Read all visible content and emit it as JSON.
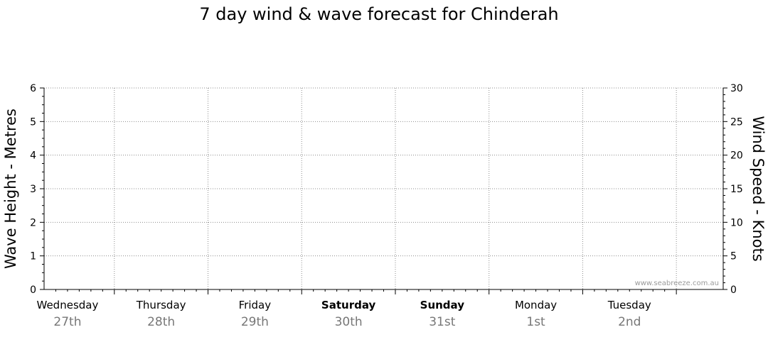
{
  "chart_data": {
    "type": "line",
    "title": "7 day wind & wave forecast for Chinderah",
    "ylabel_left": "Wave Height - Metres",
    "ylabel_right": "Wind Speed - Knots",
    "ylim_left": [
      0,
      6
    ],
    "ylim_right": [
      0,
      30
    ],
    "yticks_left": [
      "0",
      "1",
      "2",
      "3",
      "4",
      "5",
      "6"
    ],
    "yticks_right": [
      "0",
      "5",
      "10",
      "15",
      "20",
      "25",
      "30"
    ],
    "days": [
      {
        "name": "Wednesday",
        "date": "27th",
        "weekend": false
      },
      {
        "name": "Thursday",
        "date": "28th",
        "weekend": false
      },
      {
        "name": "Friday",
        "date": "29th",
        "weekend": false
      },
      {
        "name": "Saturday",
        "date": "30th",
        "weekend": true
      },
      {
        "name": "Sunday",
        "date": "31st",
        "weekend": true
      },
      {
        "name": "Monday",
        "date": "1st",
        "weekend": false
      },
      {
        "name": "Tuesday",
        "date": "2nd",
        "weekend": false
      }
    ],
    "series": [],
    "grid": true,
    "watermark": "www.seabreeze.com.au"
  }
}
